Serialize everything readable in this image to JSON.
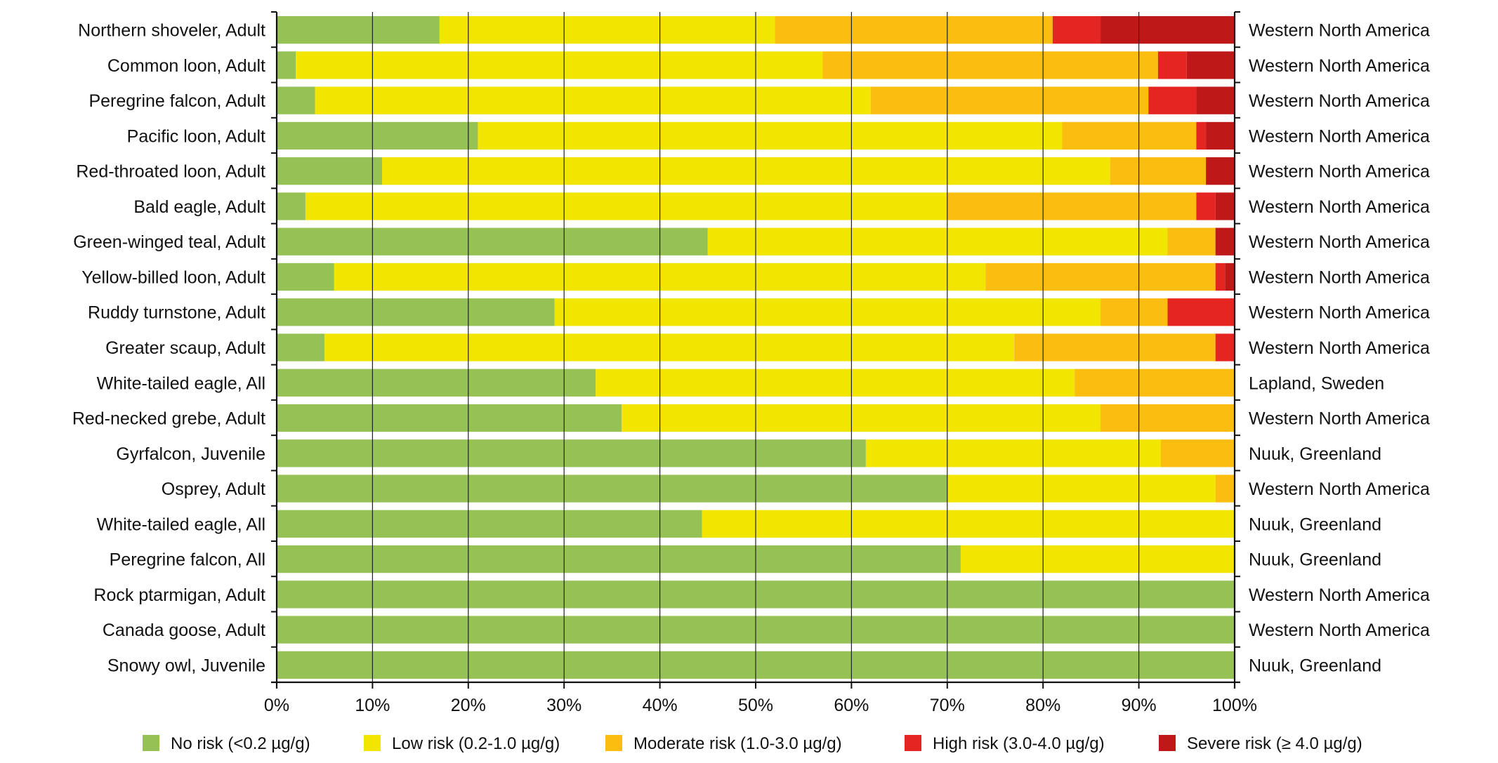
{
  "chart_data": {
    "type": "bar",
    "orientation": "horizontal",
    "stacked": true,
    "percent": true,
    "title": "",
    "xlabel": "",
    "ylabel": "",
    "xlim": [
      0,
      100
    ],
    "grid": true,
    "legend_position": "bottom",
    "x_ticks": [
      "0%",
      "10%",
      "20%",
      "30%",
      "40%",
      "50%",
      "60%",
      "70%",
      "80%",
      "90%",
      "100%"
    ],
    "categories": [
      "Northern shoveler, Adult",
      "Common loon, Adult",
      "Peregrine falcon, Adult",
      "Pacific loon, Adult",
      "Red-throated loon, Adult",
      "Bald eagle, Adult",
      "Green-winged teal, Adult",
      "Yellow-billed loon, Adult",
      "Ruddy turnstone, Adult",
      "Greater scaup, Adult",
      "White-tailed eagle, All",
      "Red-necked grebe, Adult",
      "Gyrfalcon, Juvenile",
      "Osprey, Adult",
      "White-tailed eagle, All",
      "Peregrine falcon, All",
      "Rock ptarmigan, Adult",
      "Canada goose, Adult",
      "Snowy owl, Juvenile"
    ],
    "regions": [
      "Western North America",
      "Western North America",
      "Western North America",
      "Western North America",
      "Western North America",
      "Western North America",
      "Western North America",
      "Western North America",
      "Western North America",
      "Western North America",
      "Lapland, Sweden",
      "Western North America",
      "Nuuk, Greenland",
      "Western North America",
      "Nuuk, Greenland",
      "Nuuk, Greenland",
      "Western North America",
      "Western North America",
      "Nuuk, Greenland"
    ],
    "series": [
      {
        "name": "No risk (<0.2 µg/g)",
        "color": "#95c155",
        "values": [
          17,
          2,
          4,
          21,
          11,
          3,
          45,
          6,
          29,
          5,
          33.3,
          36,
          61.5,
          70,
          44.4,
          71.4,
          100,
          100,
          100
        ]
      },
      {
        "name": "Low risk (0.2-1.0 µg/g)",
        "color": "#f2e500",
        "values": [
          35,
          55,
          58,
          61,
          76,
          67,
          48,
          68,
          57,
          72,
          50,
          50,
          30.8,
          28,
          55.6,
          28.6,
          0,
          0,
          0
        ]
      },
      {
        "name": "Moderate risk (1.0-3.0 µg/g)",
        "color": "#fbbd10",
        "values": [
          29,
          35,
          29,
          14,
          10,
          26,
          5,
          24,
          7,
          21,
          16.7,
          14,
          7.7,
          2,
          0,
          0,
          0,
          0,
          0
        ]
      },
      {
        "name": "High risk (3.0-4.0 µg/g)",
        "color": "#e52521",
        "values": [
          5,
          3,
          5,
          1,
          0,
          2,
          0,
          1,
          7,
          2,
          0,
          0,
          0,
          0,
          0,
          0,
          0,
          0,
          0
        ]
      },
      {
        "name": "Severe risk (≥ 4.0 µg/g)",
        "color": "#be1819",
        "values": [
          14,
          5,
          4,
          3,
          3,
          2,
          2,
          1,
          0,
          0,
          0,
          0,
          0,
          0,
          0,
          0,
          0,
          0,
          0
        ]
      }
    ]
  }
}
